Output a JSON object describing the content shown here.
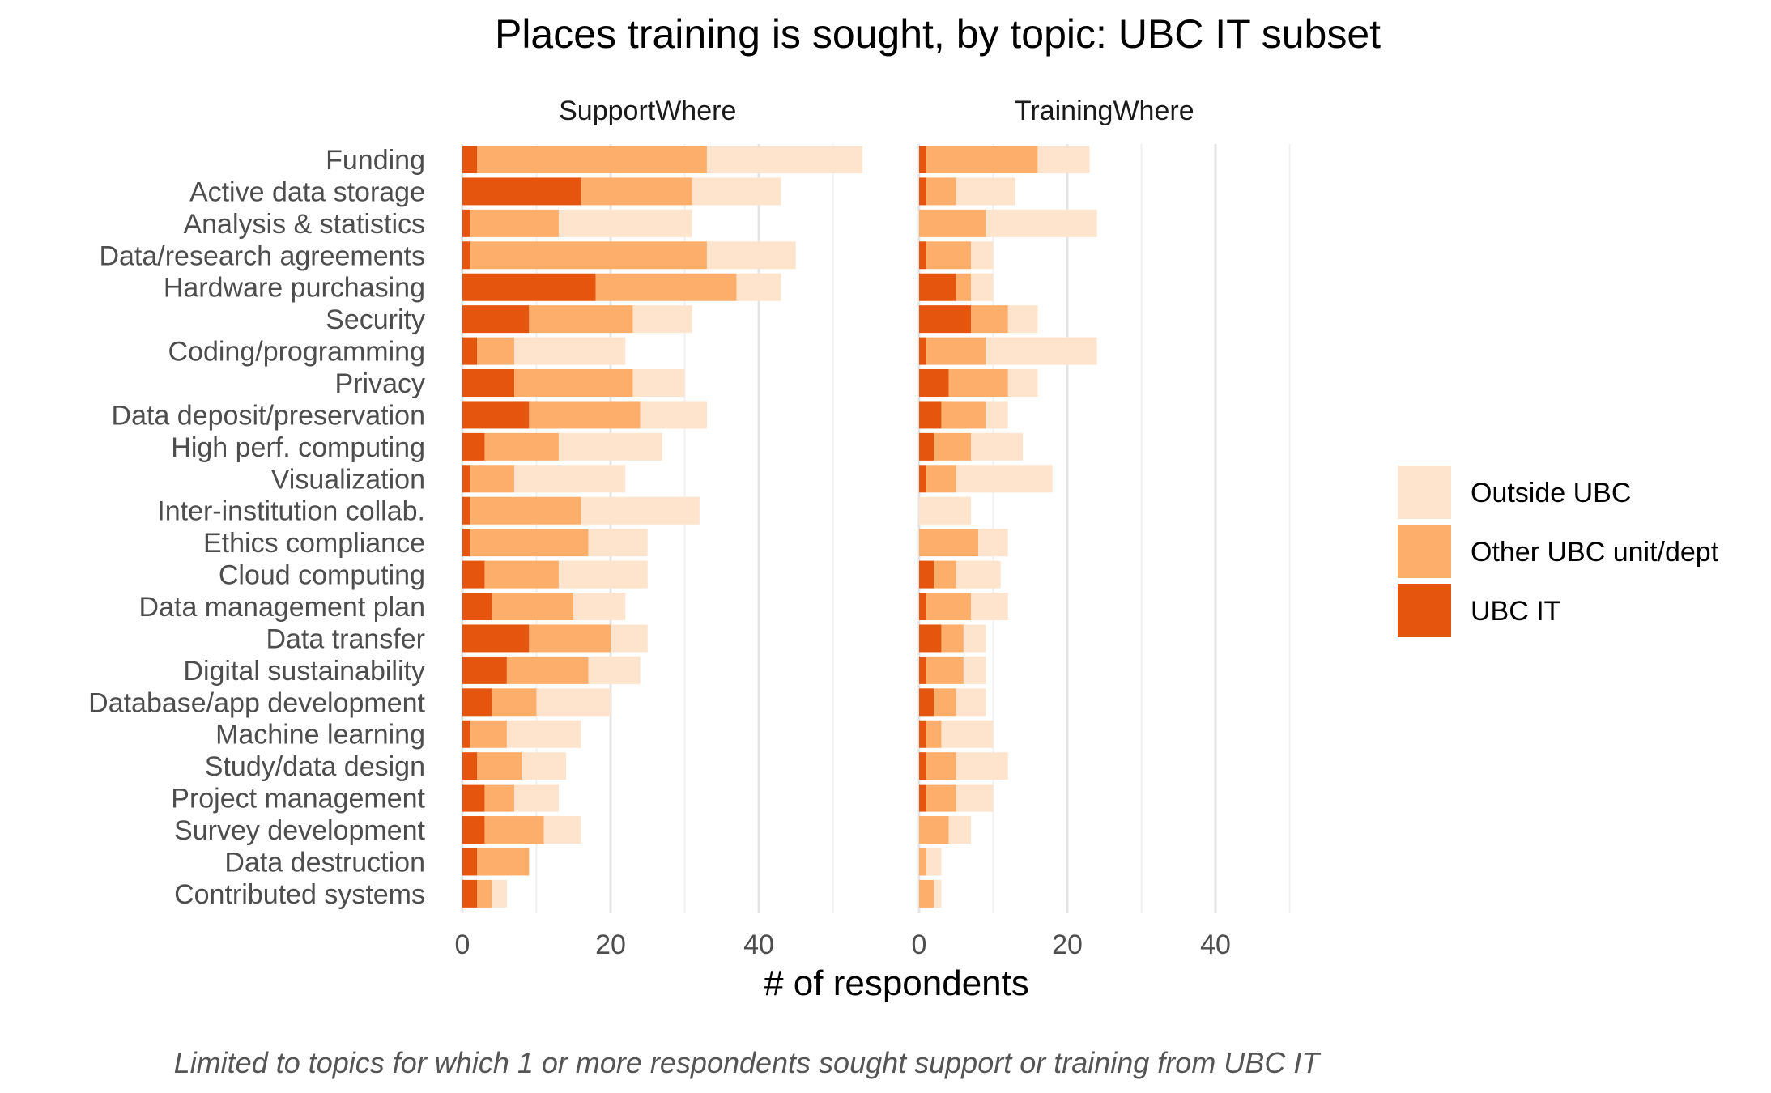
{
  "chart_data": {
    "type": "bar",
    "orientation": "horizontal",
    "stacked": true,
    "title": "Places training is sought, by topic: UBC IT subset",
    "xlabel": "# of respondents",
    "ylabel": "",
    "caption": "Limited to topics for which 1 or more respondents sought support or training from UBC IT",
    "xlim": [
      0,
      50
    ],
    "x_ticks": [
      0,
      20,
      40
    ],
    "grid": true,
    "legend_position": "right",
    "categories": [
      "Funding",
      "Active data storage",
      "Analysis & statistics",
      "Data/research agreements",
      "Hardware purchasing",
      "Security",
      "Coding/programming",
      "Privacy",
      "Data deposit/preservation",
      "High perf. computing",
      "Visualization",
      "Inter-institution collab.",
      "Ethics compliance",
      "Cloud computing",
      "Data management plan",
      "Data transfer",
      "Digital sustainability",
      "Database/app development",
      "Machine learning",
      "Study/data design",
      "Project management",
      "Survey development",
      "Data destruction",
      "Contributed systems"
    ],
    "series_meta": [
      {
        "name": "Outside UBC",
        "color": "#FEE3CD"
      },
      {
        "name": "Other UBC unit/dept",
        "color": "#FDAE6B"
      },
      {
        "name": "UBC IT",
        "color": "#E6550D"
      }
    ],
    "panels": [
      {
        "name": "SupportWhere",
        "series": [
          {
            "name": "UBC IT",
            "values": [
              2,
              16,
              1,
              1,
              18,
              9,
              2,
              7,
              9,
              3,
              1,
              1,
              1,
              3,
              4,
              9,
              6,
              4,
              1,
              2,
              3,
              3,
              2,
              2
            ]
          },
          {
            "name": "Other UBC unit/dept",
            "values": [
              31,
              15,
              12,
              32,
              19,
              14,
              5,
              16,
              15,
              10,
              6,
              15,
              16,
              10,
              11,
              11,
              11,
              6,
              5,
              6,
              4,
              8,
              7,
              2
            ]
          },
          {
            "name": "Outside UBC",
            "values": [
              21,
              12,
              18,
              12,
              6,
              8,
              15,
              7,
              9,
              14,
              15,
              16,
              8,
              12,
              7,
              5,
              7,
              10,
              10,
              6,
              6,
              5,
              0,
              2
            ]
          }
        ]
      },
      {
        "name": "TrainingWhere",
        "series": [
          {
            "name": "UBC IT",
            "values": [
              1,
              1,
              0,
              1,
              5,
              7,
              1,
              4,
              3,
              2,
              1,
              0,
              0,
              2,
              1,
              3,
              1,
              2,
              1,
              1,
              1,
              0,
              0,
              0
            ]
          },
          {
            "name": "Other UBC unit/dept",
            "values": [
              15,
              4,
              9,
              6,
              2,
              5,
              8,
              8,
              6,
              5,
              4,
              0,
              8,
              3,
              6,
              3,
              5,
              3,
              2,
              4,
              4,
              4,
              1,
              2
            ]
          },
          {
            "name": "Outside UBC",
            "values": [
              7,
              8,
              15,
              3,
              3,
              4,
              15,
              4,
              3,
              7,
              13,
              7,
              4,
              6,
              5,
              3,
              3,
              4,
              7,
              7,
              5,
              3,
              2,
              1
            ]
          }
        ]
      }
    ]
  }
}
